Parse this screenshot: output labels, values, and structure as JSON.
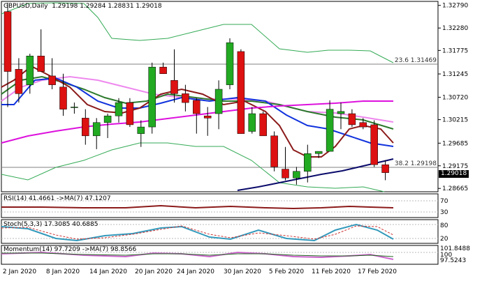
{
  "main": {
    "symbol": "GBPUSD,Daily",
    "ohlc": "1.29198 1.29284 1.28831 1.29018",
    "current_price": "1.29018",
    "fib_levels": [
      {
        "label": "23.6 1.31469",
        "price": 1.31469
      },
      {
        "label": "38.2 1.29198",
        "price": 1.29198
      }
    ],
    "y_ticks": [
      "1.32790",
      "1.32280",
      "1.31775",
      "1.31245",
      "1.30720",
      "1.30215",
      "1.29685",
      "1.29175",
      "1.28665"
    ],
    "y_tick_values": [
      1.3279,
      1.3228,
      1.31775,
      1.31245,
      1.3072,
      1.30215,
      1.29685,
      1.29175,
      1.28665
    ]
  },
  "rsi": {
    "label": "RSI(14) 41.4661  ->MA(7) 47.1207",
    "y_ticks": [
      "70",
      "30"
    ]
  },
  "stoch": {
    "label": "Stoch(5,3,3) 17.3085 40.6885",
    "y_ticks": [
      "80",
      "20"
    ]
  },
  "momentum": {
    "label": "Momentum(14) 97.7209  ->MA(7) 98.8566",
    "y_ticks": [
      "101.8488",
      "100",
      "97.5243"
    ]
  },
  "x_axis": {
    "labels": [
      "2 Jan 2020",
      "8 Jan 2020",
      "14 Jan 2020",
      "20 Jan 2020",
      "24 Jan 2020",
      "30 Jan 2020",
      "5 Feb 2020",
      "11 Feb 2020",
      "17 Feb 2020"
    ]
  },
  "colors": {
    "bull": "#22aa22",
    "bear": "#dd1111",
    "ma_dark_red": "#8b1a1a",
    "ma_blue": "#1133dd",
    "ma_green": "#2d7a2d",
    "ma_pink": "#ee88ee",
    "ma_magenta": "#dd11dd",
    "ma_navy": "#0b0b6b",
    "bollinger": "#33aa55",
    "oscillator_line": "#8b1a1a",
    "stoch_main": "#3399bb",
    "stoch_signal": "#cc3333",
    "momentum_main": "#cc66cc",
    "momentum_ma": "#226622"
  },
  "chart_data": {
    "type": "candlestick",
    "title": "GBPUSD,Daily",
    "ylim": [
      1.2859,
      1.3288
    ],
    "candles": [
      {
        "o": 1.3265,
        "h": 1.3285,
        "l": 1.305,
        "c": 1.313
      },
      {
        "o": 1.3135,
        "h": 1.316,
        "l": 1.306,
        "c": 1.308
      },
      {
        "o": 1.31,
        "h": 1.317,
        "l": 1.308,
        "c": 1.3165
      },
      {
        "o": 1.3165,
        "h": 1.3225,
        "l": 1.313,
        "c": 1.313
      },
      {
        "o": 1.312,
        "h": 1.316,
        "l": 1.309,
        "c": 1.31
      },
      {
        "o": 1.3095,
        "h": 1.3125,
        "l": 1.303,
        "c": 1.3045
      },
      {
        "o": 1.305,
        "h": 1.306,
        "l": 1.3035,
        "c": 1.305
      },
      {
        "o": 1.3025,
        "h": 1.3045,
        "l": 1.2965,
        "c": 1.2985
      },
      {
        "o": 1.2985,
        "h": 1.3025,
        "l": 1.2955,
        "c": 1.3015
      },
      {
        "o": 1.3015,
        "h": 1.3035,
        "l": 1.298,
        "c": 1.303
      },
      {
        "o": 1.303,
        "h": 1.307,
        "l": 1.3015,
        "c": 1.306
      },
      {
        "o": 1.306,
        "h": 1.307,
        "l": 1.3005,
        "c": 1.301
      },
      {
        "o": 1.299,
        "h": 1.302,
        "l": 1.296,
        "c": 1.3005
      },
      {
        "o": 1.3005,
        "h": 1.315,
        "l": 1.299,
        "c": 1.314
      },
      {
        "o": 1.314,
        "h": 1.315,
        "l": 1.3125,
        "c": 1.3125
      },
      {
        "o": 1.311,
        "h": 1.318,
        "l": 1.306,
        "c": 1.308
      },
      {
        "o": 1.308,
        "h": 1.31,
        "l": 1.304,
        "c": 1.306
      },
      {
        "o": 1.3065,
        "h": 1.307,
        "l": 1.299,
        "c": 1.3035
      },
      {
        "o": 1.303,
        "h": 1.305,
        "l": 1.2985,
        "c": 1.3025
      },
      {
        "o": 1.3035,
        "h": 1.311,
        "l": 1.3,
        "c": 1.309
      },
      {
        "o": 1.31,
        "h": 1.3205,
        "l": 1.309,
        "c": 1.3195
      },
      {
        "o": 1.3175,
        "h": 1.318,
        "l": 1.299,
        "c": 1.299
      },
      {
        "o": 1.2995,
        "h": 1.305,
        "l": 1.299,
        "c": 1.3035
      },
      {
        "o": 1.3035,
        "h": 1.304,
        "l": 1.2985,
        "c": 1.2985
      },
      {
        "o": 1.2985,
        "h": 1.2995,
        "l": 1.2905,
        "c": 1.2915
      },
      {
        "o": 1.291,
        "h": 1.296,
        "l": 1.2885,
        "c": 1.289
      },
      {
        "o": 1.289,
        "h": 1.2915,
        "l": 1.2875,
        "c": 1.2905
      },
      {
        "o": 1.2905,
        "h": 1.2965,
        "l": 1.288,
        "c": 1.2945
      },
      {
        "o": 1.2945,
        "h": 1.295,
        "l": 1.2935,
        "c": 1.295
      },
      {
        "o": 1.295,
        "h": 1.3065,
        "l": 1.295,
        "c": 1.3045
      },
      {
        "o": 1.3035,
        "h": 1.306,
        "l": 1.3,
        "c": 1.304
      },
      {
        "o": 1.3035,
        "h": 1.3045,
        "l": 1.3005,
        "c": 1.301
      },
      {
        "o": 1.3015,
        "h": 1.3025,
        "l": 1.3,
        "c": 1.3005
      },
      {
        "o": 1.301,
        "h": 1.302,
        "l": 1.2915,
        "c": 1.292
      },
      {
        "o": 1.292,
        "h": 1.293,
        "l": 1.2885,
        "c": 1.2902
      }
    ]
  }
}
